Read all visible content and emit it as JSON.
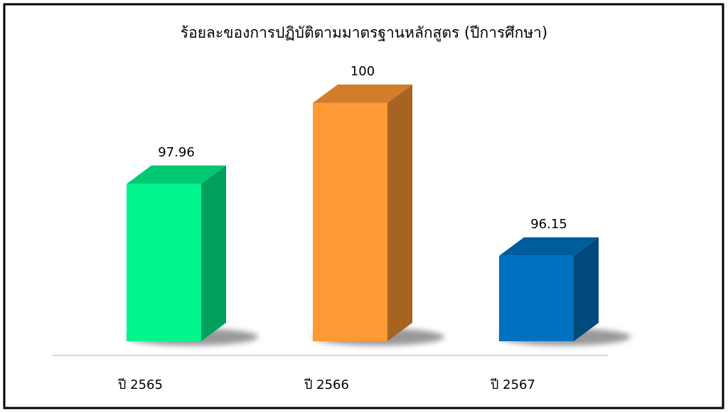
{
  "chart_data": {
    "type": "bar3d",
    "title": "ร้อยละของการปฏิบัติตามมาตรฐานหลักสูตร (ปีการศึกษา)",
    "categories": [
      "ปี 2565",
      "ปี 2566",
      "ปี 2567"
    ],
    "values": [
      97.96,
      100,
      96.15
    ],
    "colors": [
      "#00f58c",
      "#ff9933",
      "#0070c0"
    ],
    "ylim": [
      94,
      101
    ]
  }
}
